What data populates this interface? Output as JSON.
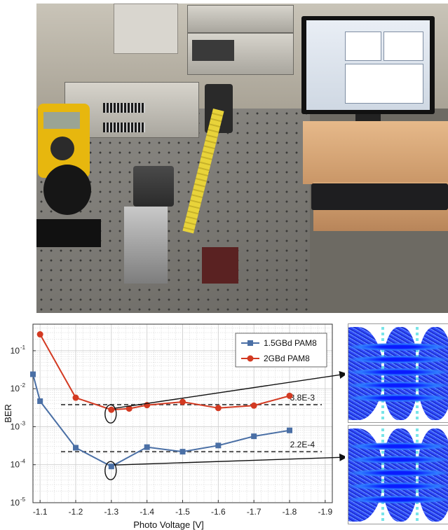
{
  "chart_data": {
    "type": "line",
    "title": "",
    "xlabel": "Photo Voltage [V]",
    "ylabel": "BER",
    "xlim": [
      -1.08,
      -1.92
    ],
    "ylim": [
      1e-05,
      0.5
    ],
    "yscale": "log",
    "x_ticks": [
      -1.1,
      -1.2,
      -1.3,
      -1.4,
      -1.5,
      -1.6,
      -1.7,
      -1.8,
      -1.9
    ],
    "x_tick_labels": [
      "-1.1",
      "-1.2",
      "-1.3",
      "-1.4",
      "-1.5",
      "-1.6",
      "-1.7",
      "-1.8",
      "-1.9"
    ],
    "y_ticks": [
      1e-05,
      0.0001,
      0.001,
      0.01,
      0.1
    ],
    "y_tick_base": "10",
    "y_tick_exps": [
      "-5",
      "-4",
      "-3",
      "-2",
      "-1"
    ],
    "grid": true,
    "legend_position": "top-right",
    "series": [
      {
        "name": "1.5GBd PAM8",
        "color": "#4a6fa5",
        "marker": "square",
        "x": [
          -1.08,
          -1.1,
          -1.2,
          -1.3,
          -1.4,
          -1.5,
          -1.6,
          -1.7,
          -1.8
        ],
        "y": [
          0.024,
          0.0047,
          0.00028,
          9e-05,
          0.00029,
          0.00022,
          0.00032,
          0.00056,
          0.0008
        ]
      },
      {
        "name": "2GBd PAM8",
        "color": "#d33a22",
        "marker": "circle",
        "x": [
          -1.1,
          -1.2,
          -1.3,
          -1.35,
          -1.4,
          -1.5,
          -1.6,
          -1.7,
          -1.8
        ],
        "y": [
          0.27,
          0.0058,
          0.0028,
          0.003,
          0.0037,
          0.0045,
          0.0031,
          0.0036,
          0.0065
        ]
      }
    ],
    "thresholds": [
      {
        "value": 0.0038,
        "label": "3.8E-3"
      },
      {
        "value": 0.00022,
        "label": "2.2E-4"
      }
    ],
    "highlight_points": [
      {
        "x": -1.3,
        "y": 0.0028
      },
      {
        "x": -1.3,
        "y": 9e-05
      }
    ]
  },
  "colors": {
    "threshold_line": "#555555",
    "grid": "#cfcfcf",
    "arrow": "#111111"
  }
}
